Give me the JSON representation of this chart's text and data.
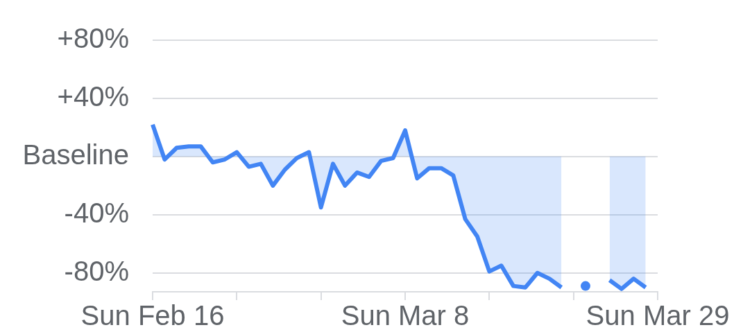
{
  "chart_data": {
    "type": "area",
    "series": [
      {
        "color": "#4285f4",
        "x": [
          "--02-16",
          "--02-17",
          "--02-18",
          "--02-19",
          "--02-20",
          "--02-21",
          "--02-22",
          "--02-23",
          "--02-24",
          "--02-25",
          "--02-26",
          "--02-27",
          "--02-28",
          "--02-29",
          "--03-01",
          "--03-02",
          "--03-03",
          "--03-04",
          "--03-05",
          "--03-06",
          "--03-07",
          "--03-08",
          "--03-09",
          "--03-10",
          "--03-11",
          "--03-12",
          "--03-13",
          "--03-14",
          "--03-15",
          "--03-16",
          "--03-17",
          "--03-18",
          "--03-19",
          "--03-20",
          "--03-21",
          "--03-22",
          "--03-23",
          "--03-24",
          "--03-25",
          "--03-26",
          "--03-27",
          "--03-28"
        ],
        "values": [
          22,
          -2,
          6,
          7,
          7,
          -4,
          -2,
          3,
          -7,
          -5,
          -20,
          -9,
          -1,
          3,
          -35,
          -5,
          -20,
          -11,
          -14,
          -3,
          -1,
          18,
          -15,
          -8,
          -8,
          -13,
          -43,
          -55,
          -79,
          -75,
          -89,
          -90,
          -80,
          -84,
          -90,
          null,
          null,
          null,
          -85,
          -91,
          -84,
          -90
        ]
      },
      {
        "type": "scatter",
        "color": "#4285f4",
        "marker": "circle",
        "x": [
          "--03-23"
        ],
        "values": [
          -89
        ]
      }
    ],
    "xlim": [
      "--02-16",
      "--03-29"
    ],
    "xticks": [
      {
        "value": "--02-16",
        "label": "Sun Feb 16"
      },
      {
        "value": "--02-23",
        "label": null
      },
      {
        "value": "--03-01",
        "label": null
      },
      {
        "value": "--03-08",
        "label": "Sun Mar 8"
      },
      {
        "value": "--03-15",
        "label": null
      },
      {
        "value": "--03-22",
        "label": null
      },
      {
        "value": "--03-29",
        "label": "Sun Mar 29"
      }
    ],
    "ylim": [
      -93,
      80
    ],
    "yticks": [
      {
        "value": 80,
        "label": "+80%"
      },
      {
        "value": 40,
        "label": "+40%"
      },
      {
        "value": 0,
        "label": "Baseline"
      },
      {
        "value": -40,
        "label": "-40%"
      },
      {
        "value": -80,
        "label": "-80%"
      }
    ],
    "grid": "y",
    "marker": "none"
  }
}
